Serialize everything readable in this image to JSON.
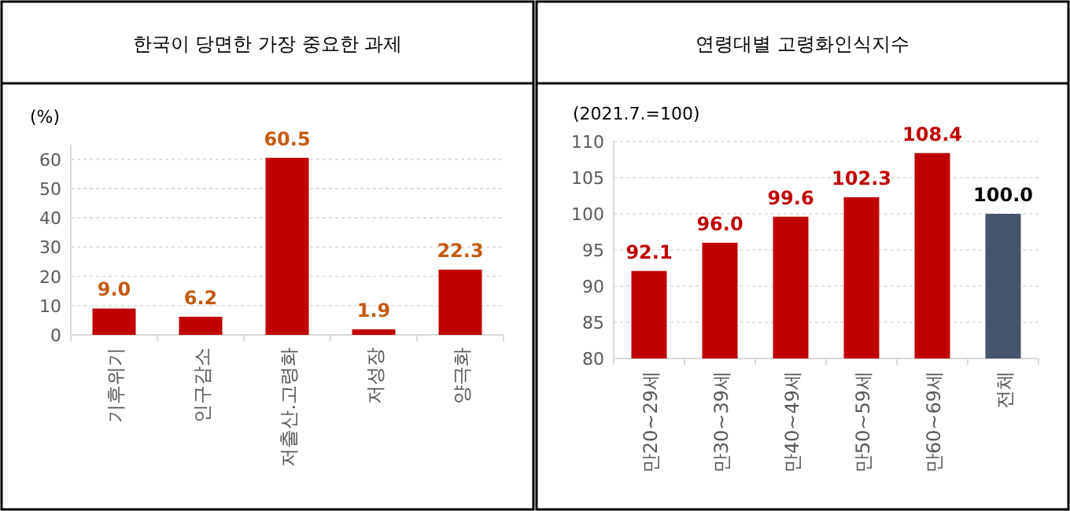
{
  "chart_data": [
    {
      "type": "bar",
      "title": "한국이 당면한 가장 중요한 과제",
      "ylabel": "(%)",
      "categories": [
        "기후위기",
        "인구감소",
        "저출산.고령화",
        "저성장",
        "양극화"
      ],
      "values": [
        9.0,
        6.2,
        60.5,
        1.9,
        22.3
      ],
      "color": "#c00000",
      "ylim": [
        0,
        65
      ],
      "yticks": [
        0,
        10,
        20,
        30,
        40,
        50,
        60
      ],
      "grid": "y",
      "value_labels": [
        "9.0",
        "6.2",
        "60.5",
        "1.9",
        "22.3"
      ]
    },
    {
      "type": "bar",
      "title": "연령대별 고령화인식지수",
      "ylabel": "(2021.7.=100)",
      "categories": [
        "만20~29세",
        "만30~39세",
        "만40~49세",
        "만50~59세",
        "만60~69세",
        "전체"
      ],
      "values": [
        92.1,
        96.0,
        99.6,
        102.3,
        108.4,
        100.0
      ],
      "colors": [
        "#c00000",
        "#c00000",
        "#c00000",
        "#c00000",
        "#c00000",
        "#44546a"
      ],
      "ylim": [
        80,
        110
      ],
      "yticks": [
        80,
        85,
        90,
        95,
        100,
        105,
        110
      ],
      "grid": "y",
      "value_labels": [
        "92.1",
        "96.0",
        "99.6",
        "102.3",
        "108.4",
        "100.0"
      ]
    }
  ]
}
